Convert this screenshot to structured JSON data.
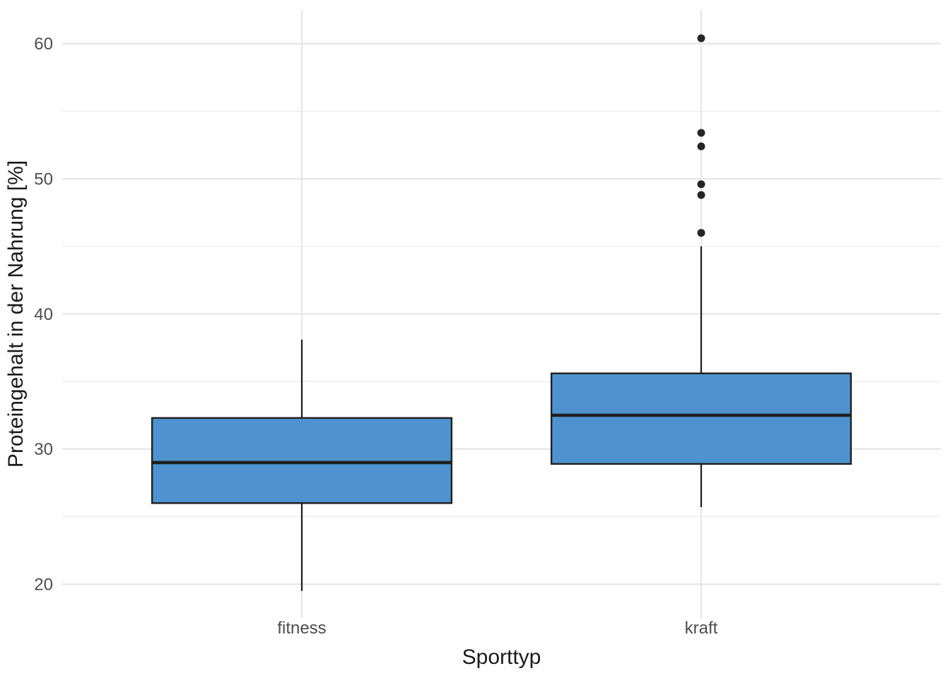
{
  "chart_data": {
    "type": "boxplot",
    "title": "",
    "xlabel": "Sporttyp",
    "ylabel": "Proteingehalt in der Nahrung [%]",
    "categories": [
      "fitness",
      "kraft"
    ],
    "series": [
      {
        "name": "fitness",
        "whisker_low": 19.5,
        "q1": 26.0,
        "median": 29.0,
        "q3": 32.3,
        "whisker_high": 38.1,
        "outliers": []
      },
      {
        "name": "kraft",
        "whisker_low": 25.7,
        "q1": 28.9,
        "median": 32.5,
        "q3": 35.6,
        "whisker_high": 45.0,
        "outliers": [
          46.0,
          48.8,
          49.6,
          52.4,
          53.4,
          60.4
        ]
      }
    ],
    "y_axis": {
      "ticks": [
        20,
        30,
        40,
        50,
        60
      ],
      "minor_ticks": [
        25,
        35,
        45,
        55
      ],
      "ylim": [
        17.5,
        62.5
      ]
    },
    "x_axis": {
      "tick_labels": [
        "fitness",
        "kraft"
      ]
    },
    "grid": true,
    "legend": "none",
    "colors": {
      "background": "#FFFFFF",
      "box_fill": "#4E93CF",
      "box_stroke": "#1F1F1F",
      "median_stroke": "#1F1F1F",
      "whisker_stroke": "#1F1F1F",
      "outlier_fill": "#262626",
      "grid_major": "#E7E7E7",
      "grid_minor": "#EDEDED",
      "tick_text": "#4D4D4D",
      "axis_title_text": "#1A1A1A"
    }
  }
}
